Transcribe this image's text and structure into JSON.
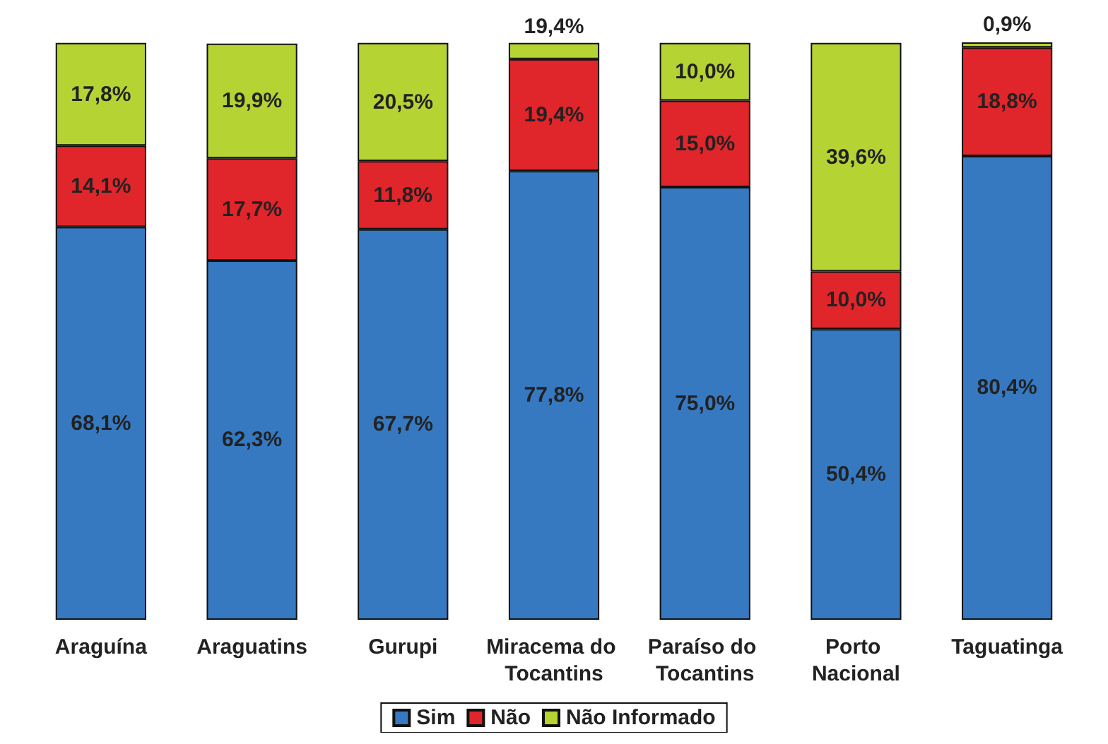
{
  "chart_data": {
    "type": "bar",
    "stacked": true,
    "legend": "bottom",
    "grid": false,
    "categories": [
      "Araguína",
      "Araguatins",
      "Gurupi",
      "Miracema do Tocantins",
      "Paraíso do Tocantins",
      "Porto Nacional",
      "Taguatinga"
    ],
    "series": [
      {
        "name": "Sim",
        "color": "#3679c1",
        "values": [
          68.1,
          62.3,
          67.7,
          77.8,
          75.0,
          50.4,
          80.4
        ],
        "value_labels": [
          "68,1%",
          "62,3%",
          "67,7%",
          "77,8%",
          "75,0%",
          "50,4%",
          "80,4%"
        ]
      },
      {
        "name": "Não",
        "color": "#e0252b",
        "values": [
          14.1,
          17.7,
          11.8,
          19.4,
          15.0,
          10.0,
          18.8
        ],
        "value_labels": [
          "14,1%",
          "17,7%",
          "11,8%",
          "19,4%",
          "15,0%",
          "10,0%",
          "18,8%"
        ]
      },
      {
        "name": "Não Informado",
        "color": "#b6d334",
        "values": [
          17.8,
          19.9,
          20.5,
          2.8,
          10.0,
          39.6,
          0.9
        ],
        "value_labels": [
          "17,8%",
          "19,9%",
          "20,5%",
          null,
          "10,0%",
          "39,6%",
          "0,9%"
        ]
      }
    ],
    "annotations": [
      {
        "text": "19,4%",
        "x": "Miracema do Tocantins",
        "y": 100
      }
    ]
  }
}
